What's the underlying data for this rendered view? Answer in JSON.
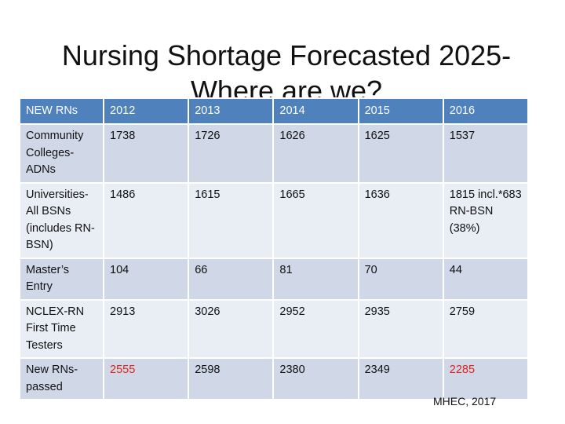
{
  "title": {
    "line1": "Nursing Shortage Forecasted 2025-",
    "line2": "Where are we?"
  },
  "table": {
    "headers": [
      "NEW RNs",
      "2012",
      "2013",
      "2014",
      "2015",
      "2016"
    ],
    "rows": [
      {
        "label": "Community Colleges-ADNs",
        "values": [
          "1738",
          "1726",
          "1626",
          "1625",
          "1537"
        ]
      },
      {
        "label": "Universities-All BSNs (includes RN-BSN)",
        "values": [
          "1486",
          "1615",
          "1665",
          "1636",
          "1815 incl.*683 RN-BSN (38%)"
        ]
      },
      {
        "label": "Master’s Entry",
        "values": [
          "104",
          "66",
          "81",
          "70",
          "44"
        ]
      },
      {
        "label": "NCLEX-RN First Time Testers",
        "values": [
          "2913",
          "3026",
          "2952",
          "2935",
          "2759"
        ]
      },
      {
        "label": "New RNs-passed",
        "values": [
          "2555",
          "2598",
          "2380",
          "2349",
          "2285"
        ]
      }
    ],
    "highlight_color": "#e0201a",
    "header_color": "#4f81bd"
  },
  "source": "MHEC, 2017"
}
